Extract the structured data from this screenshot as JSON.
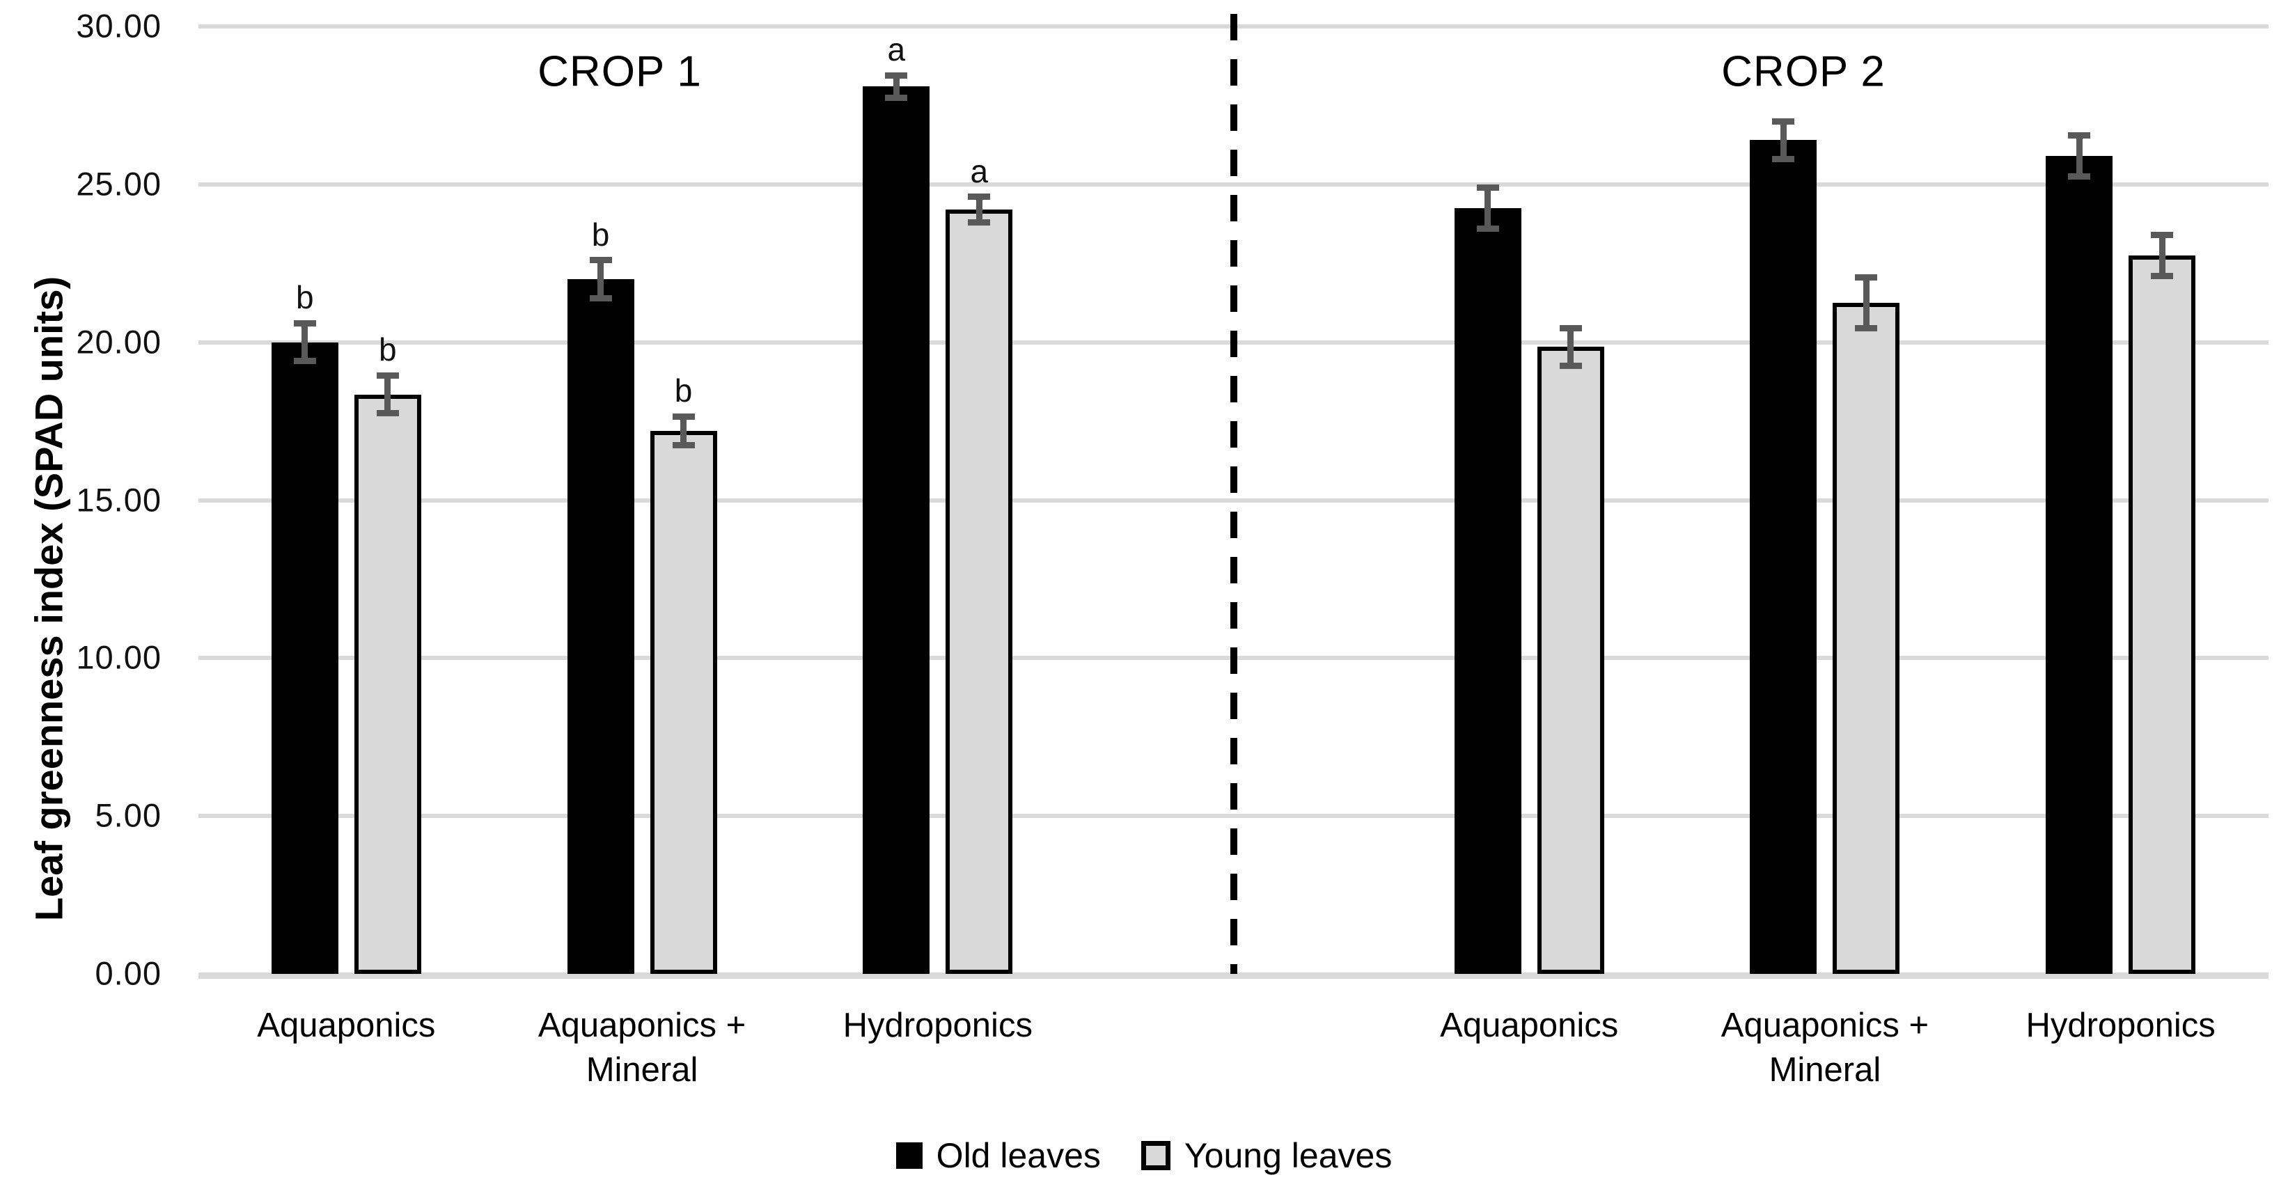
{
  "chart_data": {
    "type": "bar",
    "title_left": "CROP 1",
    "title_right": "CROP 2",
    "ylabel": "Leaf greenness index (SPAD units)",
    "ylim": [
      0,
      30
    ],
    "y_tick_step": 5,
    "y_tick_labels": [
      "0.00",
      "5.00",
      "10.00",
      "15.00",
      "20.00",
      "25.00",
      "30.00"
    ],
    "grid": true,
    "legend_position": "bottom-center",
    "legend": [
      {
        "name": "Old leaves",
        "swatch": "black-filled-square"
      },
      {
        "name": "Young leaves",
        "swatch": "gray-square-black-border"
      }
    ],
    "series_names": [
      "Old leaves",
      "Young leaves"
    ],
    "groups": [
      {
        "crop": "CROP 1",
        "category": "Aquaponics",
        "slot": 0,
        "old": {
          "value": 20.0,
          "err": 0.6,
          "letter": "b"
        },
        "young": {
          "value": 18.35,
          "err": 0.6,
          "letter": "b"
        }
      },
      {
        "crop": "CROP 1",
        "category": "Aquaponics + Mineral",
        "slot": 1,
        "old": {
          "value": 22.0,
          "err": 0.6,
          "letter": "b"
        },
        "young": {
          "value": 17.2,
          "err": 0.45,
          "letter": "b"
        }
      },
      {
        "crop": "CROP 1",
        "category": "Hydroponics",
        "slot": 2,
        "old": {
          "value": 28.1,
          "err": 0.35,
          "letter": "a"
        },
        "young": {
          "value": 24.2,
          "err": 0.4,
          "letter": "a"
        }
      },
      {
        "crop": "CROP 2",
        "category": "Aquaponics",
        "slot": 4,
        "old": {
          "value": 24.25,
          "err": 0.65,
          "letter": ""
        },
        "young": {
          "value": 19.85,
          "err": 0.6,
          "letter": ""
        }
      },
      {
        "crop": "CROP 2",
        "category": "Aquaponics + Mineral",
        "slot": 5,
        "old": {
          "value": 26.4,
          "err": 0.6,
          "letter": ""
        },
        "young": {
          "value": 21.25,
          "err": 0.8,
          "letter": ""
        }
      },
      {
        "crop": "CROP 2",
        "category": "Hydroponics",
        "slot": 6,
        "old": {
          "value": 25.9,
          "err": 0.65,
          "letter": ""
        },
        "young": {
          "value": 22.75,
          "err": 0.65,
          "letter": ""
        }
      }
    ],
    "colors": {
      "old_fill": "#000000",
      "young_fill": "#d9d9d9",
      "young_border": "#000000",
      "error_bar": "#595959",
      "gridline": "#d9d9d9",
      "axis_line": "#d9d9d9",
      "divider": "#000000",
      "text": "#000000",
      "background": "#ffffff"
    }
  }
}
